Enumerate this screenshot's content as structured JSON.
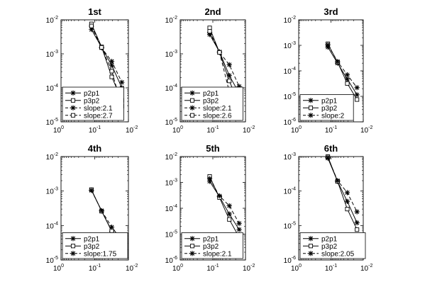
{
  "chart_data": [
    {
      "type": "line",
      "title": "1st",
      "xscale": "log",
      "yscale": "log",
      "xlim": [
        1,
        0.01
      ],
      "ylim": [
        1e-05,
        0.01
      ],
      "xticks": [
        1,
        0.1,
        0.01
      ],
      "yticks": [
        0.01,
        0.001,
        0.0001,
        1e-05
      ],
      "legend_position": "bottom-left",
      "series": [
        {
          "name": "p2p1",
          "marker": "star",
          "line": "solid",
          "x": [
            0.125,
            0.0625,
            0.03125,
            0.015625
          ],
          "y": [
            0.0052,
            0.00155,
            0.00046,
            0.0001
          ]
        },
        {
          "name": "p3p2",
          "marker": "square",
          "line": "solid",
          "x": [
            0.125,
            0.0625,
            0.03125,
            0.015625
          ],
          "y": [
            0.0076,
            0.0016,
            0.00021,
            4.3e-05
          ]
        },
        {
          "name": "slope:2.1",
          "marker": "star",
          "line": "dashed",
          "x": [
            0.125,
            0.0625,
            0.03125,
            0.015625
          ],
          "y": [
            0.0065,
            0.0015,
            0.0006,
            0.000145
          ]
        },
        {
          "name": "slope:2.7",
          "marker": "square",
          "line": "dashed",
          "x": [
            0.125,
            0.0625,
            0.03125,
            0.015625
          ],
          "y": [
            0.0066,
            0.00155,
            0.00031,
            2.9e-05
          ]
        }
      ]
    },
    {
      "type": "line",
      "title": "2nd",
      "xscale": "log",
      "yscale": "log",
      "xlim": [
        1,
        0.01
      ],
      "ylim": [
        1e-05,
        0.01
      ],
      "xticks": [
        1,
        0.1,
        0.01
      ],
      "yticks": [
        0.01,
        0.001,
        0.0001,
        1e-05
      ],
      "legend_position": "bottom-left",
      "series": [
        {
          "name": "p2p1",
          "marker": "star",
          "line": "solid",
          "x": [
            0.125,
            0.0625,
            0.03125,
            0.015625
          ],
          "y": [
            0.0037,
            0.00115,
            0.00023,
            6.9e-05
          ]
        },
        {
          "name": "p3p2",
          "marker": "square",
          "line": "solid",
          "x": [
            0.125,
            0.0625,
            0.03125,
            0.015625
          ],
          "y": [
            0.0058,
            0.0011,
            0.00016,
            3.3e-05
          ]
        },
        {
          "name": "slope:2.1",
          "marker": "star",
          "line": "dashed",
          "x": [
            0.125,
            0.0625,
            0.03125,
            0.015625
          ],
          "y": [
            0.0043,
            0.0011,
            0.00048,
            0.00011
          ]
        },
        {
          "name": "slope:2.6",
          "marker": "square",
          "line": "dashed",
          "x": [
            0.125,
            0.0625,
            0.03125,
            0.015625
          ],
          "y": [
            0.0046,
            0.0011,
            7.7e-05,
            1.25e-05
          ]
        }
      ]
    },
    {
      "type": "line",
      "title": "3rd",
      "xscale": "log",
      "yscale": "log",
      "xlim": [
        1,
        0.01
      ],
      "ylim": [
        1e-06,
        0.01
      ],
      "xticks": [
        1,
        0.1,
        0.01
      ],
      "yticks": [
        0.01,
        0.001,
        0.0001,
        1e-05,
        1e-06
      ],
      "legend_position": "bottom-left",
      "series": [
        {
          "name": "p2p1",
          "marker": "star",
          "line": "solid",
          "x": [
            0.125,
            0.0625,
            0.03125,
            0.015625
          ],
          "y": [
            0.00085,
            0.0002,
            4.8e-05,
            1.15e-05
          ]
        },
        {
          "name": "p3p2",
          "marker": "square",
          "line": "solid",
          "x": [
            0.125,
            0.0625,
            0.03125,
            0.015625
          ],
          "y": [
            0.00115,
            0.00022,
            3.2e-05,
            7.5e-06
          ]
        },
        {
          "name": "slope:2",
          "marker": "star",
          "line": "dashed",
          "x": [
            0.125,
            0.0625,
            0.03125,
            0.015625
          ],
          "y": [
            0.00105,
            0.00023,
            7e-05,
            2.2e-05
          ]
        }
      ]
    },
    {
      "type": "line",
      "title": "4th",
      "xscale": "log",
      "yscale": "log",
      "xlim": [
        1,
        0.01
      ],
      "ylim": [
        1e-05,
        0.01
      ],
      "xticks": [
        1,
        0.1,
        0.01
      ],
      "yticks": [
        0.01,
        0.001,
        0.0001,
        1e-05
      ],
      "legend_position": "bottom-left",
      "series": [
        {
          "name": "p2p1",
          "marker": "star",
          "line": "solid",
          "x": [
            0.125,
            0.0625,
            0.03125,
            0.015625
          ],
          "y": [
            0.00105,
            0.000265,
            6.8e-05,
            2.2e-05
          ]
        },
        {
          "name": "p3p2",
          "marker": "square",
          "line": "solid",
          "x": [
            0.125,
            0.0625,
            0.03125,
            0.015625
          ],
          "y": [
            0.0011,
            0.00026,
            7e-05,
            2.1e-05
          ]
        },
        {
          "name": "slope:1.75",
          "marker": "star",
          "line": "dashed",
          "x": [
            0.125,
            0.0625,
            0.03125,
            0.015625
          ],
          "y": [
            0.00105,
            0.00027,
            9e-05,
            3.8e-05
          ]
        }
      ]
    },
    {
      "type": "line",
      "title": "5th",
      "xscale": "log",
      "yscale": "log",
      "xlim": [
        1,
        0.01
      ],
      "ylim": [
        1e-06,
        0.01
      ],
      "xticks": [
        1,
        0.1,
        0.01
      ],
      "yticks": [
        0.01,
        0.001,
        0.0001,
        1e-05,
        1e-06
      ],
      "legend_position": "bottom-left",
      "series": [
        {
          "name": "p2p1",
          "marker": "star",
          "line": "solid",
          "x": [
            0.125,
            0.0625,
            0.03125,
            0.015625
          ],
          "y": [
            0.0011,
            0.00028,
            6e-05,
            1.5e-05
          ]
        },
        {
          "name": "p3p2",
          "marker": "square",
          "line": "solid",
          "x": [
            0.125,
            0.0625,
            0.03125,
            0.015625
          ],
          "y": [
            0.0017,
            0.00026,
            3.7e-05,
            7.6e-06
          ]
        },
        {
          "name": "slope:2.1",
          "marker": "star",
          "line": "dashed",
          "x": [
            0.125,
            0.0625,
            0.03125,
            0.015625
          ],
          "y": [
            0.0014,
            0.0003,
            0.000125,
            2.6e-05
          ]
        }
      ]
    },
    {
      "type": "line",
      "title": "6th",
      "xscale": "log",
      "yscale": "log",
      "xlim": [
        1,
        0.01
      ],
      "ylim": [
        1e-06,
        0.001
      ],
      "xticks": [
        1,
        0.1,
        0.01
      ],
      "yticks": [
        0.001,
        0.0001,
        1e-05,
        1e-06
      ],
      "legend_position": "bottom-left",
      "series": [
        {
          "name": "p2p1",
          "marker": "star",
          "line": "solid",
          "x": [
            0.125,
            0.0625,
            0.03125,
            0.015625
          ],
          "y": [
            0.0009,
            0.00019,
            5e-05,
            1.2e-05
          ]
        },
        {
          "name": "p3p2",
          "marker": "square",
          "line": "solid",
          "x": [
            0.125,
            0.0625,
            0.03125,
            0.015625
          ],
          "y": [
            0.001,
            0.00019,
            3e-05,
            7.6e-06
          ]
        },
        {
          "name": "slope:2.05",
          "marker": "star",
          "line": "dashed",
          "x": [
            0.125,
            0.0625,
            0.03125,
            0.015625
          ],
          "y": [
            0.00095,
            0.0002,
            9e-05,
            2.5e-05
          ]
        }
      ]
    }
  ]
}
